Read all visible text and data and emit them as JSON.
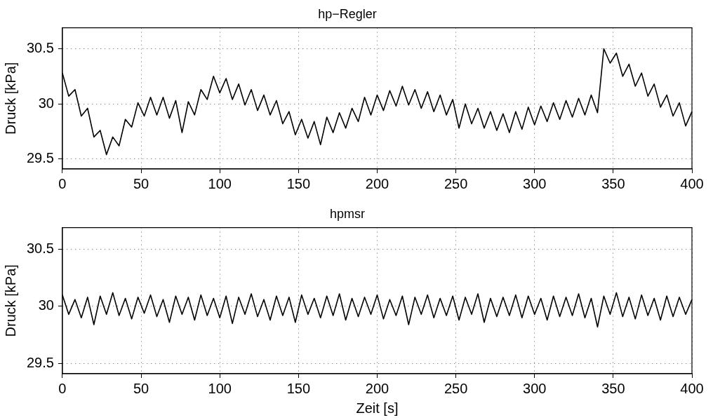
{
  "chart_data": [
    {
      "type": "line",
      "title": "hp−Regler",
      "ylabel": "Druck [kPa]",
      "xlim": [
        0,
        400
      ],
      "ylim": [
        29.41,
        30.69
      ],
      "xticks": [
        0,
        50,
        100,
        150,
        200,
        250,
        300,
        350,
        400
      ],
      "yticks": [
        29.5,
        30,
        30.5
      ],
      "grid": true,
      "series": [
        {
          "color": "#000000",
          "x": [
            0,
            4,
            8,
            12,
            16,
            20,
            24,
            28,
            32,
            36,
            40,
            44,
            48,
            52,
            56,
            60,
            64,
            68,
            72,
            76,
            80,
            84,
            88,
            92,
            96,
            100,
            104,
            108,
            112,
            116,
            120,
            124,
            128,
            132,
            136,
            140,
            144,
            148,
            152,
            156,
            160,
            164,
            168,
            172,
            176,
            180,
            184,
            188,
            192,
            196,
            200,
            204,
            208,
            212,
            216,
            220,
            224,
            228,
            232,
            236,
            240,
            244,
            248,
            252,
            256,
            260,
            264,
            268,
            272,
            276,
            280,
            284,
            288,
            292,
            296,
            300,
            304,
            308,
            312,
            316,
            320,
            324,
            328,
            332,
            336,
            340,
            344,
            348,
            352,
            356,
            360,
            364,
            368,
            372,
            376,
            380,
            384,
            388,
            392,
            396,
            400
          ],
          "values": [
            30.28,
            30.07,
            30.13,
            29.89,
            29.96,
            29.7,
            29.76,
            29.54,
            29.7,
            29.62,
            29.86,
            29.79,
            30.01,
            29.89,
            30.06,
            29.9,
            30.06,
            29.87,
            30.03,
            29.74,
            30.02,
            29.9,
            30.13,
            30.04,
            30.25,
            30.1,
            30.23,
            30.04,
            30.18,
            29.99,
            30.13,
            29.94,
            30.08,
            29.9,
            30.03,
            29.82,
            29.93,
            29.72,
            29.86,
            29.69,
            29.84,
            29.63,
            29.88,
            29.74,
            29.92,
            29.78,
            29.96,
            29.84,
            30.06,
            29.9,
            30.08,
            29.94,
            30.12,
            29.98,
            30.16,
            29.99,
            30.13,
            29.96,
            30.11,
            29.93,
            30.08,
            29.9,
            30.04,
            29.78,
            30,
            29.82,
            29.96,
            29.78,
            29.93,
            29.76,
            29.91,
            29.74,
            29.93,
            29.77,
            29.97,
            29.81,
            29.98,
            29.84,
            30.01,
            29.86,
            30.03,
            29.88,
            30.05,
            29.9,
            30.08,
            29.92,
            30.5,
            30.37,
            30.46,
            30.25,
            30.36,
            30.16,
            30.28,
            30.07,
            30.18,
            29.97,
            30.08,
            29.89,
            30.01,
            29.8,
            29.93
          ]
        }
      ]
    },
    {
      "type": "line",
      "title": "hpmsr",
      "xlabel": "Zeit [s]",
      "ylabel": "Druck [kPa]",
      "xlim": [
        0,
        400
      ],
      "ylim": [
        29.41,
        30.69
      ],
      "xticks": [
        0,
        50,
        100,
        150,
        200,
        250,
        300,
        350,
        400
      ],
      "yticks": [
        29.5,
        30,
        30.5
      ],
      "grid": true,
      "series": [
        {
          "color": "#000000",
          "x": [
            0,
            4,
            8,
            12,
            16,
            20,
            24,
            28,
            32,
            36,
            40,
            44,
            48,
            52,
            56,
            60,
            64,
            68,
            72,
            76,
            80,
            84,
            88,
            92,
            96,
            100,
            104,
            108,
            112,
            116,
            120,
            124,
            128,
            132,
            136,
            140,
            144,
            148,
            152,
            156,
            160,
            164,
            168,
            172,
            176,
            180,
            184,
            188,
            192,
            196,
            200,
            204,
            208,
            212,
            216,
            220,
            224,
            228,
            232,
            236,
            240,
            244,
            248,
            252,
            256,
            260,
            264,
            268,
            272,
            276,
            280,
            284,
            288,
            292,
            296,
            300,
            304,
            308,
            312,
            316,
            320,
            324,
            328,
            332,
            336,
            340,
            344,
            348,
            352,
            356,
            360,
            364,
            368,
            372,
            376,
            380,
            384,
            388,
            392,
            396,
            400
          ],
          "values": [
            30.1,
            29.93,
            30.06,
            29.9,
            30.08,
            29.84,
            30.09,
            29.93,
            30.12,
            29.92,
            30.07,
            29.89,
            30.08,
            29.94,
            30.1,
            29.91,
            30.06,
            29.86,
            30.09,
            29.93,
            30.08,
            29.88,
            30.1,
            29.92,
            30.07,
            29.9,
            30.09,
            29.85,
            30.08,
            29.93,
            30.11,
            29.91,
            30.06,
            29.88,
            30.09,
            29.92,
            30.08,
            29.86,
            30.1,
            29.93,
            30.07,
            29.9,
            30.09,
            29.92,
            30.11,
            29.88,
            30.07,
            29.91,
            30.08,
            29.93,
            30.1,
            29.89,
            30.06,
            29.92,
            30.09,
            29.84,
            30.08,
            29.93,
            30.1,
            29.9,
            30.07,
            29.92,
            30.09,
            29.88,
            30.08,
            29.93,
            30.11,
            29.86,
            30.07,
            29.91,
            30.08,
            29.92,
            30.1,
            29.9,
            30.09,
            29.93,
            30.07,
            29.88,
            30.09,
            29.91,
            30.08,
            29.92,
            30.11,
            29.9,
            30.07,
            29.82,
            30.09,
            29.93,
            30.12,
            29.91,
            30.08,
            29.89,
            30.1,
            29.92,
            30.07,
            29.88,
            30.09,
            29.91,
            30.08,
            29.93,
            30.06
          ]
        }
      ]
    }
  ]
}
